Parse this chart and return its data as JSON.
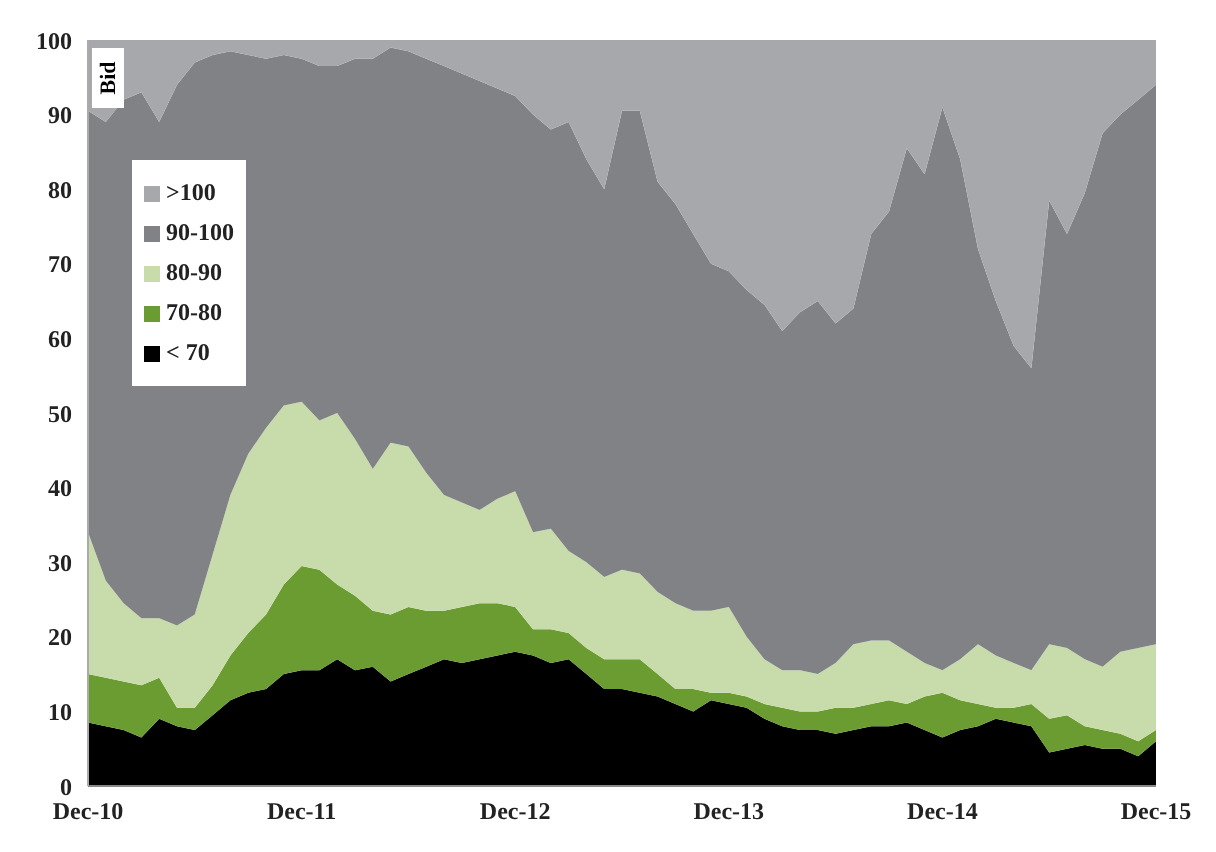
{
  "chart_data": {
    "type": "area",
    "ylabel": "Bid",
    "stacked": true,
    "legend": "top left",
    "x": [
      "2010-12",
      "2011-01",
      "2011-02",
      "2011-03",
      "2011-04",
      "2011-05",
      "2011-06",
      "2011-07",
      "2011-08",
      "2011-09",
      "2011-10",
      "2011-11",
      "2011-12",
      "2012-01",
      "2012-02",
      "2012-03",
      "2012-04",
      "2012-05",
      "2012-06",
      "2012-07",
      "2012-08",
      "2012-09",
      "2012-10",
      "2012-11",
      "2012-12",
      "2013-01",
      "2013-02",
      "2013-03",
      "2013-04",
      "2013-05",
      "2013-06",
      "2013-07",
      "2013-08",
      "2013-09",
      "2013-10",
      "2013-11",
      "2013-12",
      "2014-01",
      "2014-02",
      "2014-03",
      "2014-04",
      "2014-05",
      "2014-06",
      "2014-07",
      "2014-08",
      "2014-09",
      "2014-10",
      "2014-11",
      "2014-12",
      "2015-01",
      "2015-02",
      "2015-03",
      "2015-04",
      "2015-05",
      "2015-06",
      "2015-07",
      "2015-08",
      "2015-09",
      "2015-10",
      "2015-11",
      "2015-12"
    ],
    "xlim": [
      "2010-12",
      "2015-12"
    ],
    "xticks": [
      {
        "value": "2010-12",
        "label": "Dec-10"
      },
      {
        "value": "2011-12",
        "label": "Dec-11"
      },
      {
        "value": "2012-12",
        "label": "Dec-12"
      },
      {
        "value": "2013-12",
        "label": "Dec-13"
      },
      {
        "value": "2014-12",
        "label": "Dec-14"
      },
      {
        "value": "2015-12",
        "label": "Dec-15"
      }
    ],
    "ylim": [
      0,
      100
    ],
    "yticks": [
      0,
      10,
      20,
      30,
      40,
      50,
      60,
      70,
      80,
      90,
      100
    ],
    "series": [
      {
        "name": "< 70",
        "color": "#000000",
        "values": [
          8.5,
          8,
          7.5,
          6.5,
          9,
          8,
          7.5,
          9.5,
          11.5,
          12.5,
          13,
          15,
          15.5,
          15.5,
          17,
          15.5,
          16,
          14,
          15,
          16,
          17,
          16.5,
          17,
          17.5,
          18,
          17.5,
          16.5,
          17,
          15,
          13,
          13,
          12.5,
          12,
          11,
          10,
          11.5,
          11,
          10.5,
          9,
          8,
          7.5,
          7.5,
          7,
          7.5,
          8,
          8,
          8.5,
          7.5,
          6.5,
          7.5,
          8,
          9,
          8.5,
          8,
          4.5,
          5,
          5.5,
          5,
          5,
          4,
          6
        ]
      },
      {
        "name": "70-80",
        "color": "#6a9c32",
        "values": [
          6.5,
          6.5,
          6.5,
          7,
          5.5,
          2.5,
          3,
          4,
          6,
          8,
          10,
          12,
          14,
          13.5,
          10,
          10,
          7.5,
          9,
          9,
          7.5,
          6.5,
          7.5,
          7.5,
          7,
          6,
          3.5,
          4.5,
          3.5,
          3.5,
          4,
          4,
          4.5,
          3,
          2,
          3,
          1,
          1.5,
          1.5,
          2,
          2.5,
          2.5,
          2.5,
          3.5,
          3,
          3,
          3.5,
          2.5,
          4.5,
          6,
          4,
          3,
          1.5,
          2,
          3,
          4.5,
          4.5,
          2.5,
          2.5,
          2,
          2,
          1.5
        ]
      },
      {
        "name": "80-90",
        "color": "#c8dcab",
        "values": [
          19,
          13,
          10.5,
          9,
          8,
          11,
          12.5,
          17.5,
          21.5,
          24,
          25,
          24,
          22,
          20,
          23,
          21,
          19,
          23,
          21.5,
          18.5,
          15.5,
          14,
          12.5,
          14,
          15.5,
          13,
          13.5,
          11,
          11.5,
          11,
          12,
          11.5,
          11,
          11.5,
          10.5,
          11,
          11.5,
          8,
          6,
          5,
          5.5,
          5,
          6,
          8.5,
          8.5,
          8,
          7,
          4.5,
          3,
          5.5,
          8,
          7,
          6,
          4.5,
          10,
          9,
          9,
          8.5,
          11,
          12.5,
          11.5
        ]
      },
      {
        "name": "90-100",
        "color": "#808285",
        "values": [
          56.5,
          61.5,
          67.5,
          70.5,
          66.5,
          72.5,
          74,
          67,
          59.5,
          53.5,
          49.5,
          47,
          46,
          47.5,
          46.5,
          51,
          55,
          53,
          53,
          55.5,
          57.5,
          57.5,
          57.5,
          55,
          53,
          56,
          53.5,
          57.5,
          54,
          52,
          61.5,
          62,
          55,
          53.5,
          50.5,
          46.5,
          45,
          46.5,
          47.5,
          45.5,
          48,
          50,
          45.5,
          45,
          54.5,
          57.5,
          67.5,
          65.5,
          75.5,
          67,
          53,
          47.5,
          42.5,
          40.5,
          59.5,
          55.5,
          62.5,
          71.5,
          72,
          73.5,
          75
        ]
      },
      {
        "name": ">100",
        "color": "#a6a8ab",
        "values": [
          9.5,
          11,
          8,
          7,
          11,
          6,
          3,
          2,
          1.5,
          2,
          2.5,
          2,
          2.5,
          3.5,
          3.5,
          2.5,
          2.5,
          1,
          1.5,
          2.5,
          3.5,
          4.5,
          5.5,
          6.5,
          7.5,
          10,
          12,
          11,
          16,
          20,
          9.5,
          9.5,
          19,
          22,
          26,
          30,
          31,
          33.5,
          35.5,
          39,
          36.5,
          35,
          38,
          36,
          26,
          23,
          14.5,
          18,
          9,
          16,
          28,
          35,
          41,
          44,
          21.5,
          26,
          20.5,
          12.5,
          10,
          8,
          6
        ]
      }
    ]
  }
}
